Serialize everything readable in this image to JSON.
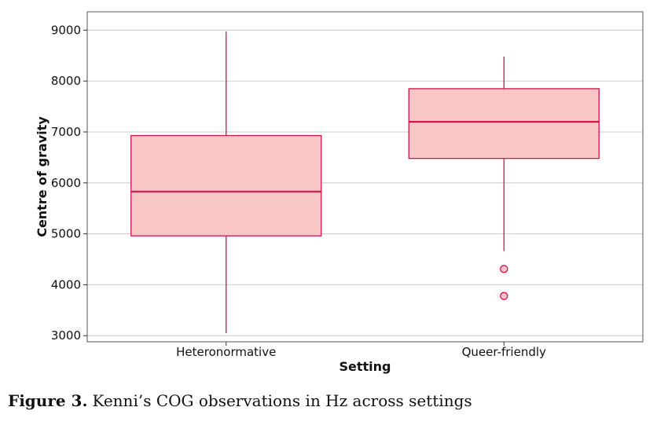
{
  "chart_data": {
    "type": "box",
    "categories": [
      "Heteronormative",
      "Queer-friendly"
    ],
    "boxes": [
      {
        "category": "Heteronormative",
        "whisker_low": 3050,
        "q1": 4960,
        "median": 5830,
        "q3": 6930,
        "whisker_high": 8970,
        "outliers": []
      },
      {
        "category": "Queer-friendly",
        "whisker_low": 4660,
        "q1": 6480,
        "median": 7200,
        "q3": 7850,
        "whisker_high": 8480,
        "outliers": [
          4310,
          3780
        ]
      }
    ],
    "xlabel": "Setting",
    "ylabel": "Centre of gravity",
    "ylim": [
      2880,
      9360
    ],
    "yticks": [
      "3000",
      "4000",
      "5000",
      "6000",
      "7000",
      "8000",
      "9000"
    ],
    "grid": "horizontal",
    "colors": {
      "box_fill": "#f9c6c6",
      "box_stroke": "#d6134f",
      "median": "#d6134f",
      "grid": "#cccccc",
      "frame": "#555555"
    }
  },
  "caption": {
    "label": "Figure 3.",
    "text": "Kenni’s COG observations in Hz across settings"
  }
}
